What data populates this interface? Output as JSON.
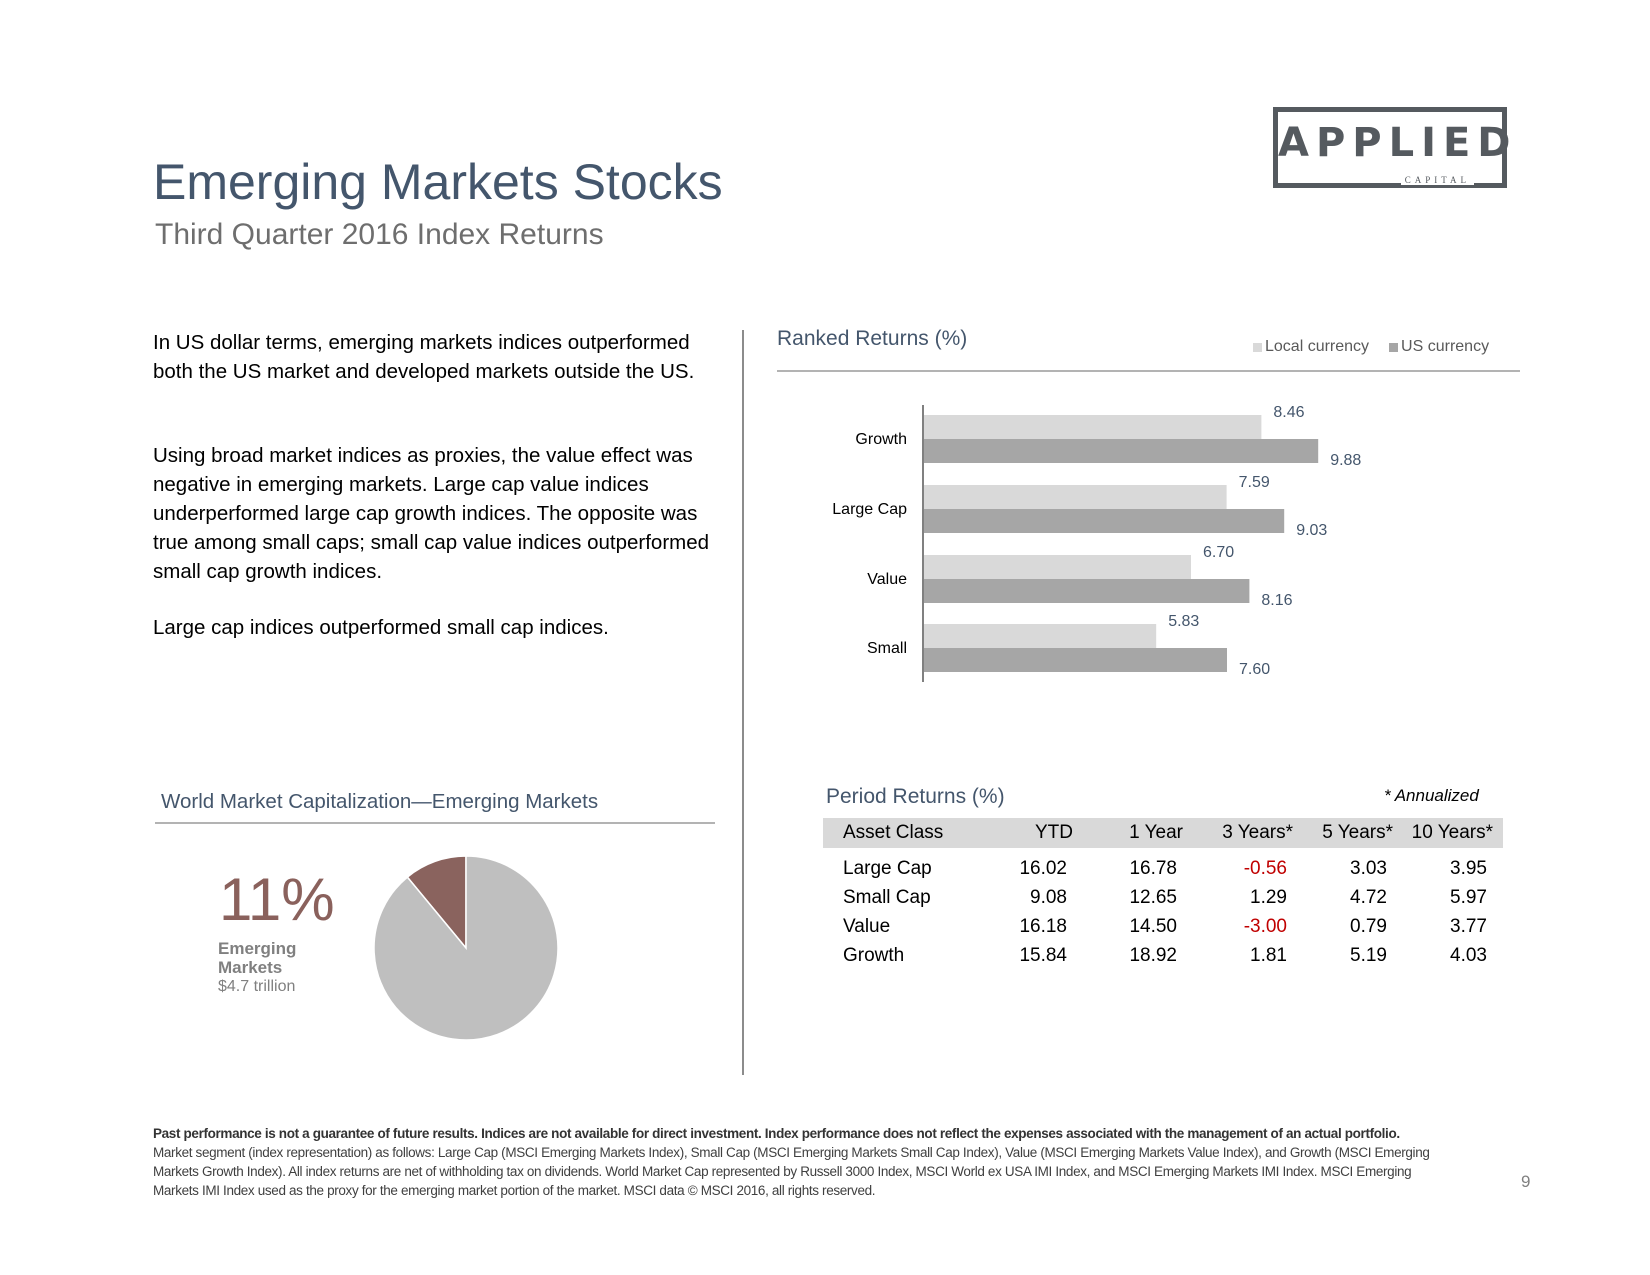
{
  "logo": {
    "main": "APPLIED",
    "sub": "CAPITAL"
  },
  "header": {
    "title": "Emerging Markets Stocks",
    "subtitle": "Third Quarter 2016 Index Returns"
  },
  "body": {
    "p1": "In US dollar terms, emerging markets indices outperformed both the US market and developed markets outside the US.",
    "p2": "Using broad market indices as proxies, the value effect was negative in emerging markets. Large cap value indices underperformed large cap growth indices. The opposite was true among small caps; small cap value indices outperformed small cap growth indices.",
    "p3": "Large cap indices outperformed small cap indices."
  },
  "ranked": {
    "title": "Ranked Returns (%)",
    "legend": [
      {
        "label": "Local currency",
        "color": "#d9d9d9"
      },
      {
        "label": "US currency",
        "color": "#a6a6a6"
      }
    ]
  },
  "period": {
    "title": "Period Returns (%)",
    "note": "* Annualized",
    "headers": [
      "Asset Class",
      "YTD",
      "1 Year",
      "3 Years*",
      "5 Years*",
      "10 Years*"
    ],
    "rows": [
      [
        "Large Cap",
        "16.02",
        "16.78",
        "-0.56",
        "3.03",
        "3.95"
      ],
      [
        "Small Cap",
        "9.08",
        "12.65",
        "1.29",
        "4.72",
        "5.97"
      ],
      [
        "Value",
        "16.18",
        "14.50",
        "-3.00",
        "0.79",
        "3.77"
      ],
      [
        "Growth",
        "15.84",
        "18.92",
        "1.81",
        "5.19",
        "4.03"
      ]
    ]
  },
  "world_cap": {
    "title": "World Market Capitalization—Emerging Markets",
    "percent_text": "11%",
    "label_line1": "Emerging",
    "label_line2": "Markets",
    "value": "$4.7 trillion",
    "colors": {
      "emerging": "#8a635e",
      "rest": "#bfbfbf"
    }
  },
  "chart_data": [
    {
      "type": "bar",
      "orientation": "horizontal",
      "title": "Ranked Returns (%)",
      "categories": [
        "Growth",
        "Large Cap",
        "Value",
        "Small"
      ],
      "series": [
        {
          "name": "Local currency",
          "values": [
            8.46,
            7.59,
            6.7,
            5.83
          ],
          "labels": [
            "8.46",
            "7.59",
            "6.70",
            "5.83"
          ],
          "color": "#d9d9d9"
        },
        {
          "name": "US currency",
          "values": [
            9.88,
            9.03,
            8.16,
            7.6
          ],
          "labels": [
            "9.88",
            "9.03",
            "8.16",
            "7.60"
          ],
          "color": "#a6a6a6"
        }
      ],
      "xlim": [
        0,
        11
      ],
      "grid": false,
      "legend": "top-right"
    },
    {
      "type": "pie",
      "title": "World Market Capitalization—Emerging Markets",
      "slices": [
        {
          "value": 11,
          "color": "#8a635e"
        },
        {
          "value": 89,
          "color": "#bfbfbf"
        }
      ]
    }
  ],
  "footer": {
    "disclaimer": "Past performance is not a guarantee of future results. Indices are not available for direct investment. Index performance does not reflect the expenses associated with the management of an actual portfolio.",
    "notes": "Market segment (index representation) as follows: Large Cap (MSCI Emerging Markets Index), Small Cap (MSCI Emerging Markets Small Cap Index), Value (MSCI Emerging Markets Value Index), and Growth (MSCI Emerging Markets Growth Index). All index returns are net of withholding tax on dividends. World Market Cap represented by Russell 3000 Index, MSCI World ex USA IMI Index, and MSCI Emerging Markets IMI Index. MSCI Emerging Markets IMI Index used as the proxy for the emerging market portion of the market. MSCI data © MSCI 2016, all rights reserved.",
    "page_number": "9"
  }
}
